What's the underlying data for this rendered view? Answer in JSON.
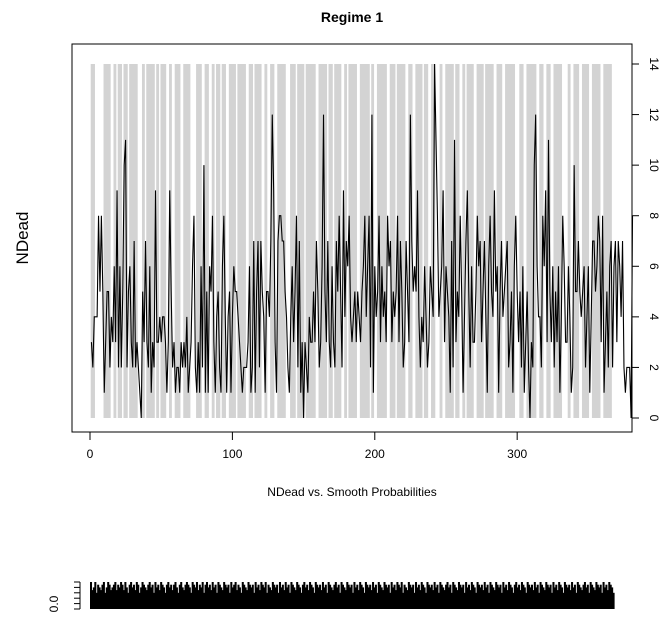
{
  "chart_data": [
    {
      "type": "line",
      "title": "Regime 1",
      "xlabel": "NDead vs. Smooth Probabilities",
      "ylabel": "NDead",
      "xlim": [
        0,
        368
      ],
      "ylim": [
        0,
        14
      ],
      "x_ticks": [
        "0",
        "100",
        "200",
        "300"
      ],
      "y_ticks": [
        "0",
        "2",
        "4",
        "6",
        "8",
        "10",
        "12",
        "14"
      ],
      "y_axis_side": "right",
      "grid": false,
      "series": [
        {
          "values": [
            3,
            2,
            4,
            4,
            4,
            8,
            5,
            8,
            5,
            1,
            3,
            5,
            5,
            2,
            4,
            3,
            6,
            3,
            9,
            2,
            6,
            2,
            5,
            10,
            11,
            2,
            5,
            6,
            3,
            2,
            7,
            2,
            3,
            2,
            1,
            0,
            5,
            3,
            7,
            3,
            2,
            6,
            1,
            3,
            2,
            9,
            3,
            3,
            4,
            3,
            4,
            4,
            3,
            1,
            3,
            9,
            5,
            2,
            3,
            1,
            2,
            2,
            1,
            3,
            2,
            3,
            2,
            4,
            1,
            2,
            3,
            6,
            8,
            2,
            1,
            3,
            1,
            6,
            2,
            10,
            1,
            5,
            1,
            6,
            5,
            8,
            3,
            1,
            4,
            5,
            2,
            1,
            6,
            8,
            4,
            1,
            4,
            5,
            1,
            4,
            6,
            5,
            5,
            4,
            3,
            2,
            1,
            2,
            2,
            2,
            3,
            6,
            1,
            2,
            7,
            1,
            5,
            7,
            2,
            7,
            5,
            4,
            1,
            5,
            5,
            4,
            7,
            12,
            9,
            3,
            1,
            7,
            8,
            8,
            7,
            7,
            5,
            4,
            2,
            1,
            4,
            6,
            3,
            5,
            8,
            2,
            7,
            1,
            3,
            0,
            3,
            2,
            1,
            4,
            3,
            3,
            5,
            3,
            7,
            5,
            2,
            3,
            6,
            12,
            5,
            3,
            7,
            3,
            2,
            6,
            3,
            2,
            7,
            5,
            8,
            5,
            2,
            9,
            4,
            7,
            6,
            8,
            4,
            3,
            4,
            5,
            3,
            5,
            4,
            3,
            5,
            6,
            8,
            4,
            6,
            8,
            2,
            12,
            1,
            6,
            4,
            5,
            8,
            3,
            6,
            4,
            5,
            3,
            8,
            6,
            7,
            3,
            5,
            4,
            5,
            8,
            3,
            7,
            5,
            2,
            3,
            7,
            5,
            3,
            12,
            7,
            5,
            6,
            5,
            9,
            4,
            2,
            4,
            3,
            6,
            4,
            2,
            3,
            6,
            5,
            4,
            14,
            11,
            8,
            4,
            5,
            6,
            9,
            3,
            6,
            5,
            4,
            1,
            7,
            2,
            11,
            3,
            5,
            4,
            8,
            5,
            1,
            4,
            7,
            9,
            5,
            2,
            6,
            3,
            3,
            5,
            8,
            6,
            7,
            3,
            5,
            7,
            4,
            1,
            6,
            8,
            5,
            4,
            9,
            5,
            6,
            1,
            5,
            7,
            4,
            5,
            6,
            7,
            2,
            3,
            5,
            1,
            6,
            8,
            5,
            3,
            5,
            2,
            6,
            1,
            3,
            5,
            2,
            0,
            3,
            2,
            10,
            12,
            6,
            4,
            4,
            2,
            8,
            6,
            9,
            3,
            11,
            5,
            3,
            6,
            2,
            5,
            3,
            6,
            1,
            4,
            8,
            6,
            3,
            3,
            6,
            4,
            1,
            2,
            10,
            5,
            5,
            7,
            5,
            4,
            5,
            6,
            2,
            4,
            6,
            1,
            4,
            7,
            7,
            5,
            6,
            8,
            7,
            3,
            8,
            1,
            3,
            5,
            2,
            6,
            7,
            2,
            6,
            7,
            3,
            7,
            6,
            4,
            7,
            2,
            1,
            2,
            2,
            2,
            0,
            8
          ]
        }
      ],
      "shading": {
        "description": "regime indicator bands",
        "color": "#d3d3d3",
        "ymax": 14,
        "intervals": [
          [
            1,
            3
          ],
          [
            10,
            14
          ],
          [
            17,
            18
          ],
          [
            20,
            22
          ],
          [
            24,
            26
          ],
          [
            28,
            33
          ],
          [
            37,
            38
          ],
          [
            40,
            45
          ],
          [
            47,
            48
          ],
          [
            50,
            53
          ],
          [
            56,
            57
          ],
          [
            60,
            63
          ],
          [
            66,
            70
          ],
          [
            75,
            78
          ],
          [
            81,
            83
          ],
          [
            86,
            87
          ],
          [
            89,
            91
          ],
          [
            93,
            95
          ],
          [
            98,
            102
          ],
          [
            104,
            109
          ],
          [
            112,
            114
          ],
          [
            116,
            120
          ],
          [
            123,
            124
          ],
          [
            127,
            129
          ],
          [
            132,
            137
          ],
          [
            141,
            144
          ],
          [
            146,
            150
          ],
          [
            152,
            158
          ],
          [
            161,
            166
          ],
          [
            168,
            170
          ],
          [
            172,
            176
          ],
          [
            179,
            180
          ],
          [
            182,
            187
          ],
          [
            190,
            196
          ],
          [
            198,
            199
          ],
          [
            202,
            208
          ],
          [
            211,
            214
          ],
          [
            216,
            221
          ],
          [
            224,
            226
          ],
          [
            229,
            233
          ],
          [
            235,
            237
          ],
          [
            240,
            242
          ],
          [
            246,
            247
          ],
          [
            250,
            255
          ],
          [
            257,
            259
          ],
          [
            262,
            263
          ],
          [
            265,
            269
          ],
          [
            272,
            276
          ],
          [
            278,
            283
          ],
          [
            286,
            289
          ],
          [
            292,
            298
          ],
          [
            302,
            304
          ],
          [
            307,
            313
          ],
          [
            316,
            318
          ],
          [
            321,
            323
          ],
          [
            326,
            331
          ],
          [
            336,
            337
          ],
          [
            340,
            343
          ],
          [
            346,
            350
          ],
          [
            353,
            358
          ],
          [
            361,
            366
          ]
        ]
      }
    },
    {
      "type": "bar",
      "title": "",
      "xlabel": "",
      "ylabel": "",
      "xlim": [
        0,
        368
      ],
      "ylim": [
        0,
        1
      ],
      "y_ticks": [
        "0.0"
      ],
      "values": [
        1,
        0.7,
        0.8,
        1,
        0.6,
        0.9,
        0.8,
        0.7,
        0.9,
        1,
        0.6,
        0.8,
        1,
        0.9,
        0.7,
        0.8,
        0.9,
        1,
        0.7,
        0.9,
        0.8,
        1,
        0.9,
        0.7,
        1,
        0.8,
        0.6,
        0.9,
        1,
        0.8,
        0.9,
        0.7,
        1,
        0.9,
        0.6,
        0.8,
        1,
        0.9,
        0.8,
        0.7,
        0.9,
        1,
        0.8,
        0.9,
        0.6,
        1,
        0.8,
        0.9,
        0.7,
        1,
        0.9,
        0.8,
        0.6,
        0.9,
        1,
        0.8,
        0.9,
        0.7,
        0.9,
        1,
        0.8,
        0.6,
        0.9,
        1,
        0.8,
        0.7,
        0.9,
        1,
        0.9,
        0.8,
        0.6,
        1,
        0.9,
        0.8,
        1,
        0.7,
        0.9,
        0.8,
        1,
        0.6,
        0.9,
        1,
        0.8,
        0.9,
        0.7,
        1,
        0.8,
        0.9,
        0.6,
        1,
        0.9,
        0.8,
        0.7,
        1,
        0.9,
        0.8,
        0.9,
        0.6,
        1,
        0.8,
        0.9,
        1,
        0.7,
        0.9,
        0.8,
        0.6,
        1,
        0.9,
        0.8,
        0.7,
        1,
        0.9,
        0.8,
        0.9,
        0.6,
        1,
        0.8,
        0.9,
        0.7,
        1,
        0.9,
        0.8,
        1,
        0.6,
        0.9,
        0.8,
        0.7,
        1,
        0.9,
        0.8,
        0.9,
        0.6,
        1,
        0.8,
        0.9,
        0.7,
        1,
        0.8,
        0.9,
        0.6,
        1,
        0.9,
        0.8,
        0.7,
        1,
        0.9,
        0.8,
        0.6,
        0.9,
        1,
        0.8,
        0.9,
        0.7,
        1,
        0.9,
        0.8,
        0.6,
        1,
        0.9,
        0.8,
        0.9,
        0.7,
        1,
        0.8,
        0.9,
        0.6,
        1,
        0.9,
        0.8,
        0.7,
        0.9,
        1,
        0.8,
        0.9,
        0.6,
        1,
        0.9,
        0.8,
        0.7,
        1,
        0.9,
        0.8,
        0.9,
        0.6,
        1,
        0.8,
        0.9,
        0.7,
        1,
        0.9,
        0.8,
        0.6,
        1,
        0.9,
        0.8,
        0.9,
        0.7,
        1,
        0.8,
        0.9,
        0.6,
        1,
        0.9,
        0.8,
        0.7,
        1,
        0.9,
        0.8,
        0.9,
        0.6,
        1,
        0.8,
        0.9,
        0.7,
        1,
        0.9,
        0.8,
        1,
        0.6,
        0.9,
        0.8,
        0.7,
        1,
        0.9,
        0.8,
        0.9,
        0.6,
        1,
        0.8,
        0.9,
        0.7,
        1,
        0.9,
        0.8,
        0.6,
        1,
        0.9,
        0.8,
        0.9,
        0.7,
        1,
        0.8,
        0.9,
        0.6,
        1,
        0.9,
        0.8,
        0.7,
        0.9,
        1,
        0.8,
        0.9,
        0.6,
        1,
        0.9,
        0.8,
        0.7,
        1,
        0.9,
        0.8,
        0.9,
        0.6,
        1,
        0.8,
        0.9,
        0.7,
        1,
        0.9,
        0.8,
        0.6,
        1,
        0.9,
        0.8,
        0.9,
        0.7,
        1,
        0.8,
        0.9,
        0.6,
        1,
        0.9,
        0.8,
        0.7,
        1,
        0.9,
        0.8,
        0.9,
        0.6,
        1,
        0.8,
        0.9,
        0.7,
        1,
        0.9,
        0.8,
        0.6,
        0.9,
        1,
        0.8,
        0.9,
        0.7,
        1,
        0.9,
        0.8,
        0.6,
        1,
        0.9,
        0.8,
        0.9,
        0.7,
        1,
        0.8,
        0.9,
        0.6,
        1,
        0.9,
        0.8,
        0.7,
        1,
        0.9,
        0.8,
        0.9,
        0.6,
        1,
        0.8,
        0.9,
        0.7,
        1,
        0.9,
        0.8,
        0.6,
        1,
        0.9,
        0.8,
        0.9,
        0.7,
        1,
        0.8,
        0.9,
        0.6,
        1,
        0.9,
        0.8,
        0.7,
        0.9,
        1,
        0.8,
        0.9,
        0.6,
        1,
        0.9,
        0.8,
        0.7,
        1,
        0.9,
        0.8,
        0.9,
        0.6,
        1,
        0.8,
        0.9,
        0.7,
        1,
        0.9,
        0.8,
        0.6
      ]
    }
  ]
}
